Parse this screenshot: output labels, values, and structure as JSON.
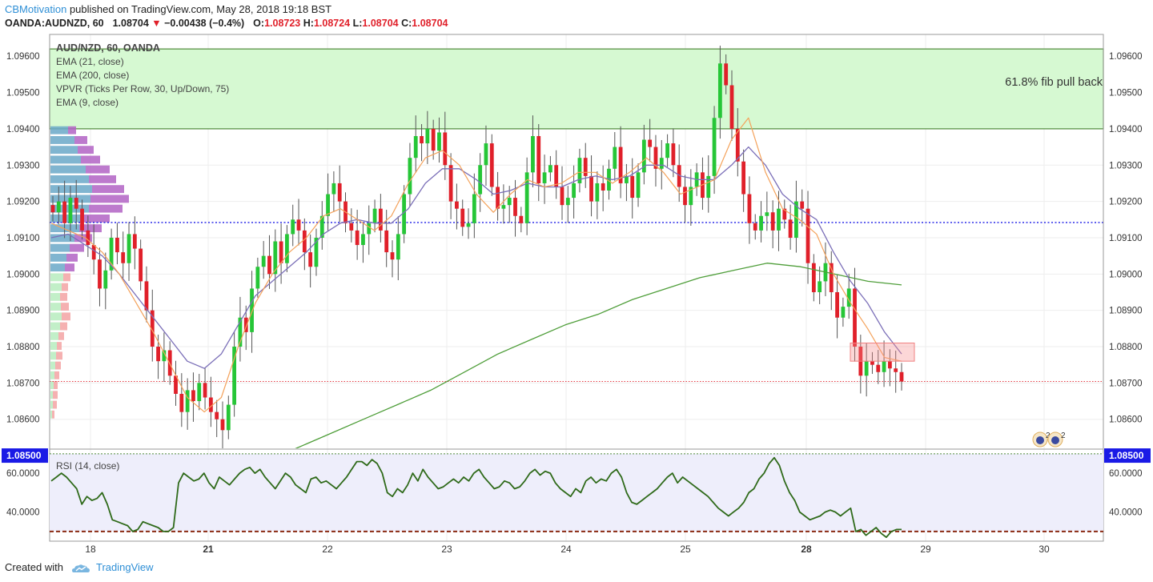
{
  "header": {
    "author": "CBMotivation",
    "published": "published on TradingView.com, May 28, 2018 19:18 BST",
    "symbol": "OANDA:AUDNZD, 60",
    "last": "1.08704",
    "change": "−0.00438 (−0.4%)",
    "o_label": "O:",
    "o_value": "1.08723",
    "h_label": "H:",
    "h_value": "1.08724",
    "l_label": "L:",
    "l_value": "1.08704",
    "c_label": "C:",
    "c_value": "1.08704"
  },
  "legend": {
    "title": "AUD/NZD, 60, OANDA",
    "items": [
      "EMA (21, close)",
      "EMA (200, close)",
      "VPVR (Ticks Per Row, 30, Up/Down, 75)",
      "EMA (9, close)"
    ]
  },
  "annotation": "61.8% fib pull back",
  "footer": {
    "created_with": "Created with",
    "brand": "TradingView"
  },
  "colors": {
    "up": "#26c637",
    "down": "#e0202a",
    "ema9": "#f4a25b",
    "ema21": "#7b6fb8",
    "ema200": "#4f9e3a",
    "fib_zone": "#d6f9d2",
    "fib_border": "#4f8a3a",
    "blue_level": "#1a1ae6",
    "rsi": "#2f6a1a",
    "rsi_bg": "#eeeefb",
    "rsi_low": "#8b2a12"
  },
  "chart_data": [
    {
      "type": "candlestick",
      "title": "AUD/NZD, 60, OANDA",
      "ylim": [
        1.0852,
        1.0966
      ],
      "y_ticks": [
        "1.09600",
        "1.09500",
        "1.09400",
        "1.09300",
        "1.09200",
        "1.09100",
        "1.09000",
        "1.08900",
        "1.08800",
        "1.08700",
        "1.08600"
      ],
      "x_ticks": [
        "18",
        "21",
        "22",
        "23",
        "24",
        "25",
        "28",
        "29",
        "30"
      ],
      "fib_zone": {
        "low": 1.094,
        "high": 1.0962,
        "label": "61.8% fib pull back"
      },
      "levels": [
        {
          "value": 1.09142,
          "style": "dotted",
          "color": "blue"
        },
        {
          "value": 1.085,
          "style": "dotted",
          "color": "blue",
          "label": "1.08500"
        },
        {
          "value": 1.08704,
          "style": "dotted",
          "color": "red"
        }
      ],
      "resistance_box": {
        "low": 1.0876,
        "high": 1.0881
      },
      "closes": [
        1.0917,
        1.092,
        1.0914,
        1.0921,
        1.0918,
        1.0912,
        1.0908,
        1.0904,
        1.0896,
        1.0901,
        1.091,
        1.0906,
        1.0903,
        1.0911,
        1.0907,
        1.0898,
        1.089,
        1.088,
        1.0876,
        1.0879,
        1.0872,
        1.0867,
        1.0862,
        1.0868,
        1.0865,
        1.087,
        1.0866,
        1.0862,
        1.086,
        1.0857,
        1.0864,
        1.088,
        1.0888,
        1.0884,
        1.0896,
        1.0902,
        1.0905,
        1.09,
        1.0909,
        1.0903,
        1.0911,
        1.0915,
        1.0912,
        1.0906,
        1.0902,
        1.091,
        1.0916,
        1.0922,
        1.0925,
        1.092,
        1.0914,
        1.0912,
        1.0908,
        1.0911,
        1.0914,
        1.0918,
        1.0912,
        1.0906,
        1.0904,
        1.0911,
        1.0922,
        1.0932,
        1.0938,
        1.0936,
        1.094,
        1.0934,
        1.0939,
        1.093,
        1.092,
        1.0918,
        1.0913,
        1.0914,
        1.0922,
        1.093,
        1.0936,
        1.0924,
        1.0918,
        1.0919,
        1.0921,
        1.0916,
        1.0914,
        1.0928,
        1.0938,
        1.0925,
        1.0928,
        1.093,
        1.0924,
        1.0919,
        1.0921,
        1.0925,
        1.0932,
        1.0927,
        1.092,
        1.0925,
        1.0923,
        1.0929,
        1.0935,
        1.0925,
        1.0927,
        1.0921,
        1.0928,
        1.0937,
        1.0935,
        1.0929,
        1.0932,
        1.0936,
        1.093,
        1.0924,
        1.0919,
        1.0924,
        1.0928,
        1.0921,
        1.0927,
        1.0943,
        1.0958,
        1.0952,
        1.094,
        1.0931,
        1.0922,
        1.0914,
        1.0912,
        1.0916,
        1.0917,
        1.0912,
        1.0918,
        1.0915,
        1.091,
        1.092,
        1.0918,
        1.0903,
        1.0895,
        1.0898,
        1.0903,
        1.0895,
        1.0888,
        1.0891,
        1.0896,
        1.088,
        1.0872,
        1.0876,
        1.0875,
        1.0873,
        1.0876,
        1.0874,
        1.0873,
        1.08704
      ],
      "ema9": [
        1.0914,
        1.0912,
        1.091,
        1.0906,
        1.09,
        1.0892,
        1.0884,
        1.0875,
        1.0866,
        1.0862,
        1.0866,
        1.088,
        1.0892,
        1.09,
        1.0906,
        1.091,
        1.0916,
        1.0918,
        1.0915,
        1.0912,
        1.0916,
        1.0925,
        1.0932,
        1.0934,
        1.093,
        1.0922,
        1.0917,
        1.0922,
        1.0926,
        1.0924,
        1.0925,
        1.0928,
        1.0928,
        1.0925,
        1.0928,
        1.0932,
        1.0928,
        1.0922,
        1.0924,
        1.0926,
        1.0937,
        1.0943,
        1.0928,
        1.0918,
        1.0915,
        1.0911,
        1.09,
        1.0892,
        1.0885,
        1.0877,
        1.0876
      ],
      "ema21": [
        1.091,
        1.0911,
        1.0908,
        1.0905,
        1.09,
        1.0894,
        1.0888,
        1.0882,
        1.0876,
        1.0874,
        1.0878,
        1.0886,
        1.0894,
        1.0898,
        1.0902,
        1.0906,
        1.0911,
        1.0914,
        1.0915,
        1.0914,
        1.0914,
        1.0918,
        1.0925,
        1.0929,
        1.0929,
        1.0926,
        1.0922,
        1.0923,
        1.0925,
        1.0924,
        1.0924,
        1.0926,
        1.0927,
        1.0926,
        1.0927,
        1.093,
        1.093,
        1.0927,
        1.0926,
        1.0926,
        1.093,
        1.0935,
        1.093,
        1.0922,
        1.0918,
        1.0915,
        1.0906,
        1.0898,
        1.0892,
        1.0884,
        1.0878
      ],
      "ema200": [
        1.0845,
        1.0848,
        1.0852,
        1.0856,
        1.086,
        1.0864,
        1.0868,
        1.0873,
        1.0878,
        1.0882,
        1.0886,
        1.0889,
        1.0893,
        1.0896,
        1.0899,
        1.0901,
        1.0903,
        1.0902,
        1.09,
        1.0898,
        1.0897
      ]
    },
    {
      "type": "line",
      "title": "RSI (14, close)",
      "ylim": [
        25,
        72
      ],
      "y_ticks": [
        "60.0000",
        "40.0000"
      ],
      "levels": [
        {
          "value": 70
        },
        {
          "value": 30
        }
      ],
      "values": [
        56,
        58,
        60,
        58,
        55,
        52,
        44,
        48,
        46,
        47,
        50,
        44,
        36,
        35,
        34,
        33,
        30,
        31,
        35,
        34,
        33,
        32,
        30,
        30,
        32,
        55,
        60,
        58,
        56,
        57,
        60,
        55,
        52,
        58,
        56,
        54,
        57,
        60,
        62,
        63,
        60,
        62,
        58,
        55,
        52,
        56,
        60,
        58,
        54,
        52,
        50,
        57,
        58,
        55,
        56,
        54,
        52,
        55,
        58,
        62,
        66,
        66,
        64,
        67,
        65,
        60,
        50,
        48,
        52,
        50,
        54,
        60,
        56,
        62,
        58,
        55,
        52,
        53,
        55,
        57,
        55,
        58,
        56,
        60,
        62,
        58,
        55,
        52,
        53,
        56,
        55,
        52,
        53,
        56,
        60,
        62,
        59,
        61,
        60,
        55,
        52,
        50,
        48,
        52,
        50,
        56,
        58,
        55,
        57,
        56,
        60,
        62,
        58,
        50,
        45,
        44,
        46,
        48,
        50,
        52,
        55,
        58,
        60,
        55,
        58,
        56,
        54,
        52,
        50,
        48,
        45,
        42,
        40,
        38,
        40,
        42,
        45,
        50,
        52,
        57,
        60,
        65,
        68,
        64,
        56,
        50,
        46,
        40,
        38,
        36,
        37,
        38,
        40,
        41,
        40,
        38,
        40,
        42,
        30,
        31,
        28,
        30,
        32,
        29,
        27,
        30,
        31,
        31
      ],
      "recent_values": [
        60,
        56,
        54,
        52,
        46,
        40,
        37,
        38,
        35,
        38,
        40,
        41,
        42,
        38,
        36,
        38,
        39,
        40,
        41,
        40,
        42,
        38,
        31,
        32,
        33,
        30,
        31,
        31,
        32,
        28,
        26,
        29,
        31,
        32,
        31,
        30
      ]
    }
  ]
}
